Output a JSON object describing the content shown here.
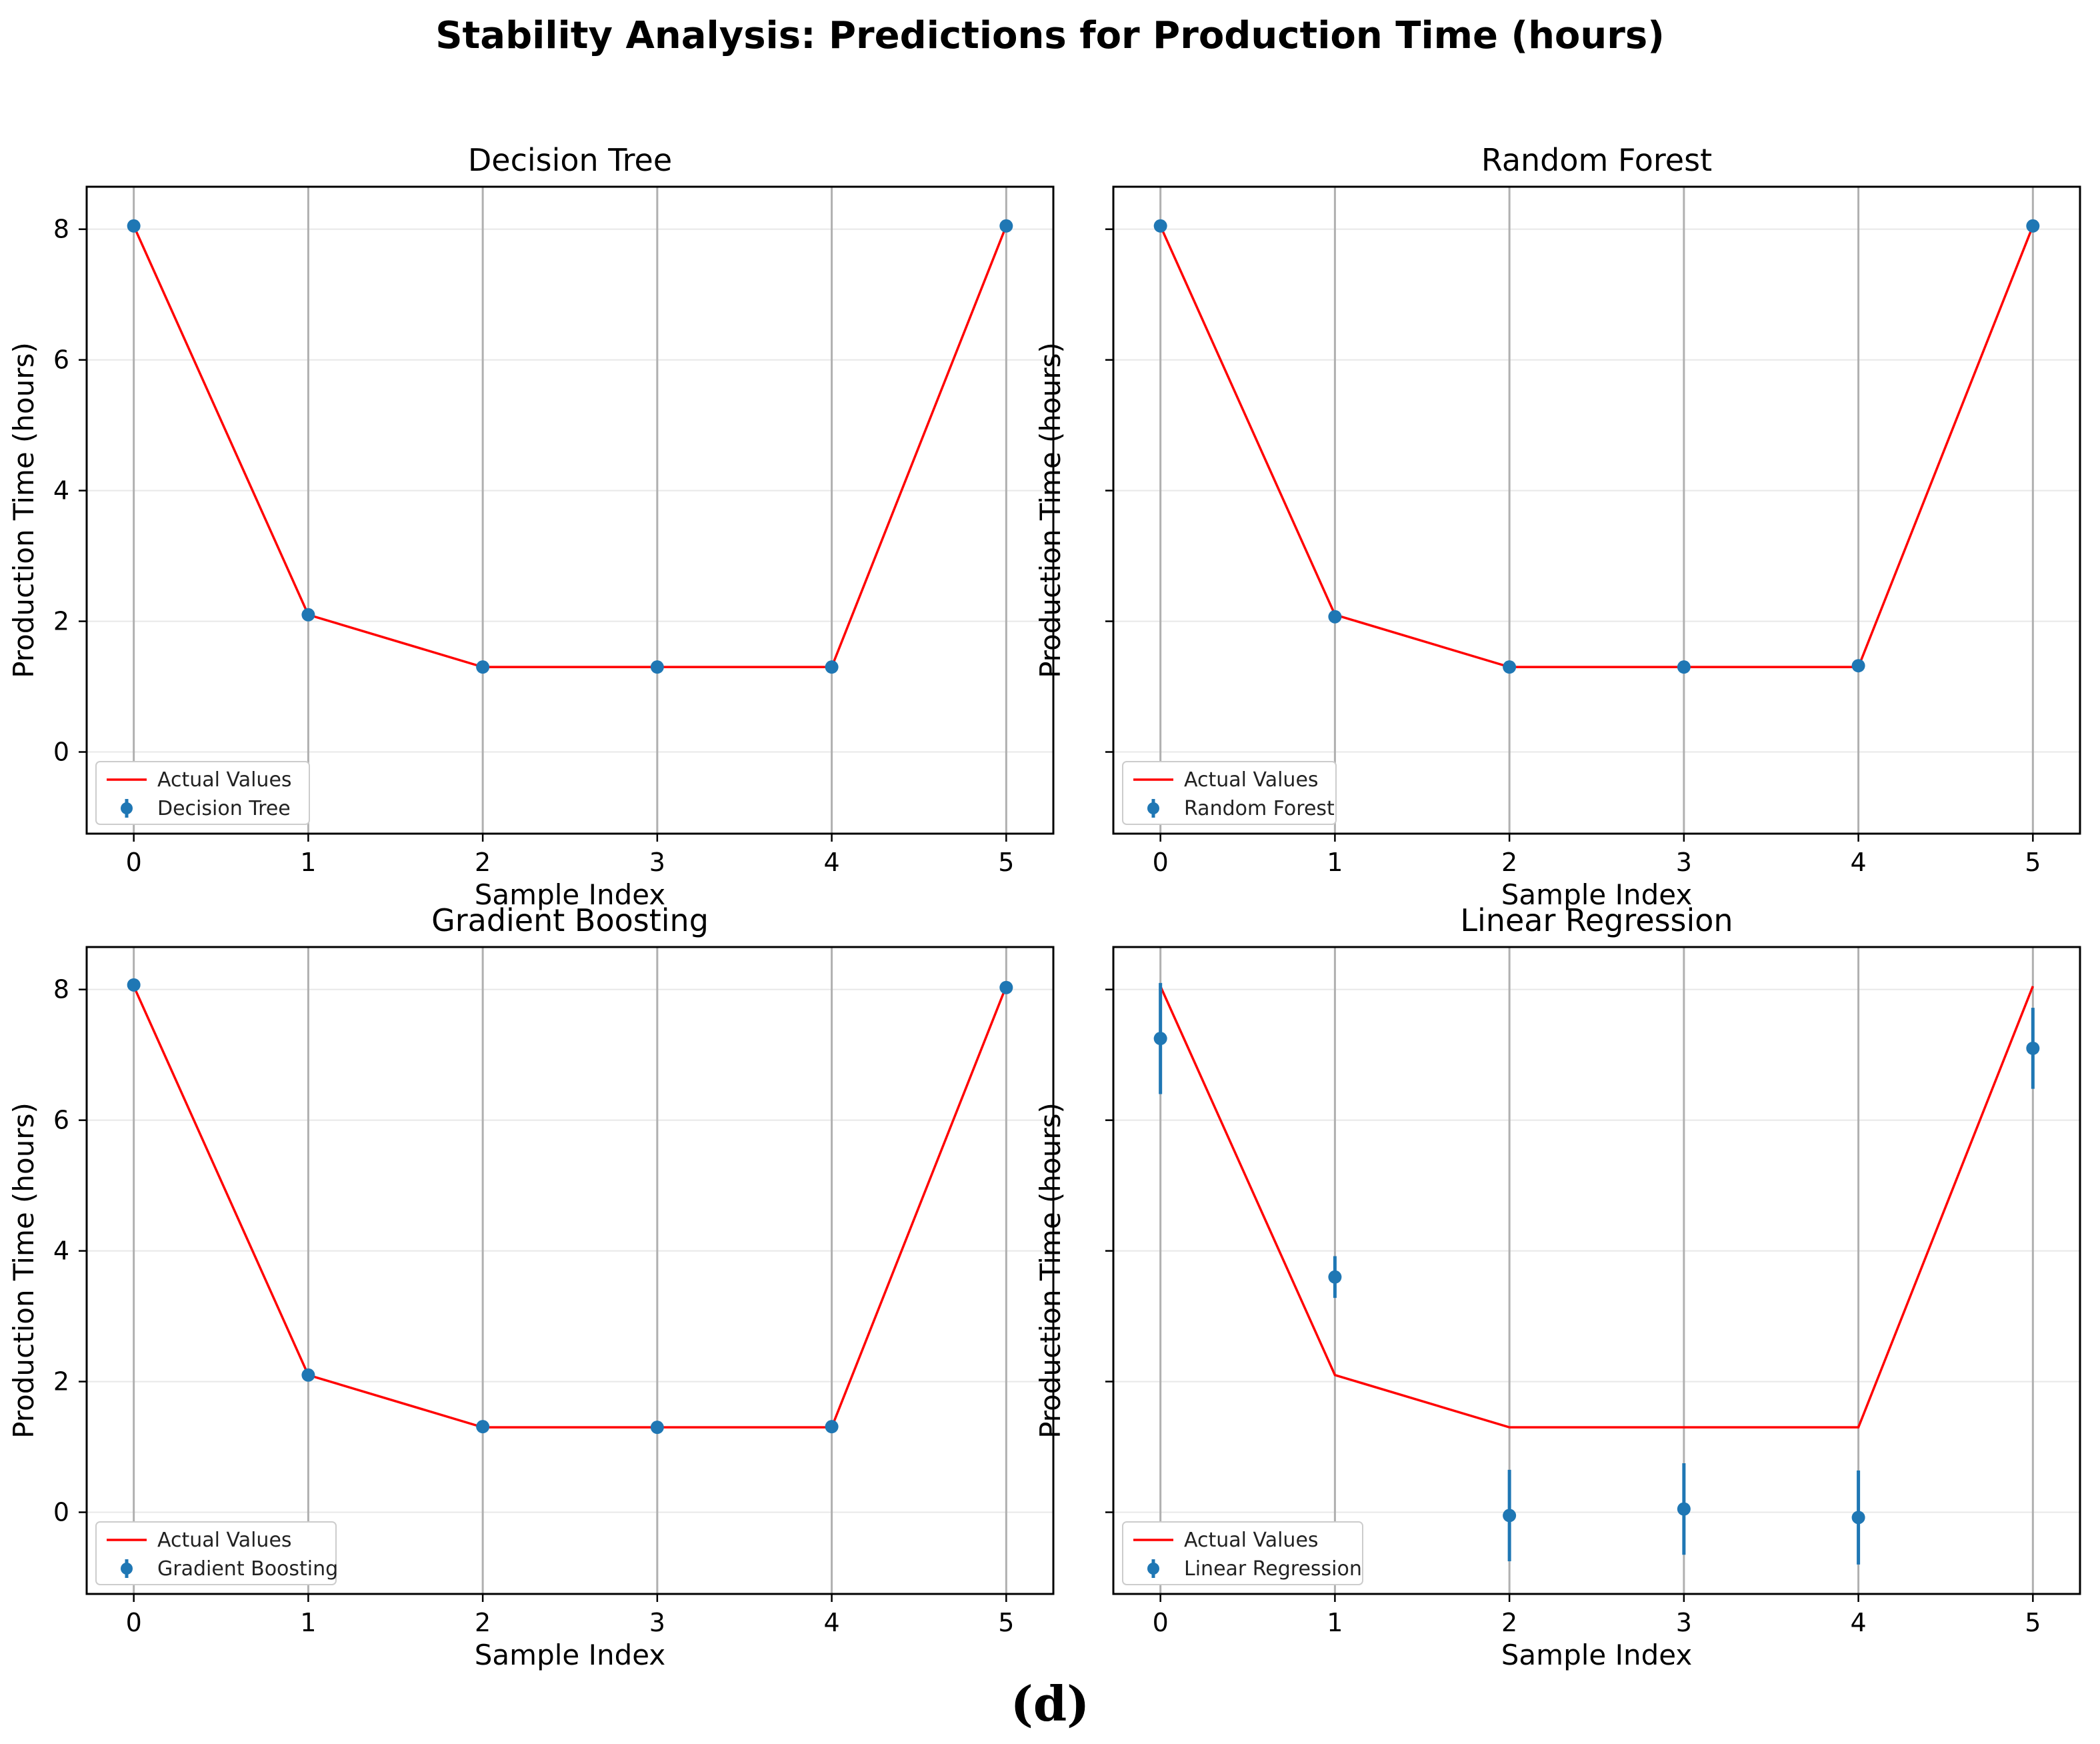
{
  "title": "Stability Analysis: Predictions for Production Time (hours)",
  "caption": "(d)",
  "chart_data": [
    {
      "type": "line",
      "title": "Decision Tree",
      "xlabel": "Sample Index",
      "ylabel": "Production Time (hours)",
      "x": [
        0,
        1,
        2,
        3,
        4,
        5
      ],
      "xlim": [
        -0.27,
        5.27
      ],
      "ylim": [
        -1.25,
        8.65
      ],
      "xticks": [
        "0",
        "1",
        "2",
        "3",
        "4",
        "5"
      ],
      "yticks": [
        "0",
        "2",
        "4",
        "6",
        "8"
      ],
      "show_ytick_labels": true,
      "grid": true,
      "legend_location": "lower left",
      "series": [
        {
          "name": "Actual Values",
          "kind": "line",
          "color": "#ff0000",
          "values": [
            8.05,
            2.1,
            1.3,
            1.3,
            1.3,
            8.05
          ]
        },
        {
          "name": "Decision Tree",
          "kind": "errorbar",
          "color": "#1f77b4",
          "values": [
            8.05,
            2.1,
            1.3,
            1.3,
            1.3,
            8.05
          ],
          "errors": [
            0,
            0,
            0,
            0,
            0,
            0
          ]
        }
      ]
    },
    {
      "type": "line",
      "title": "Random Forest",
      "xlabel": "Sample Index",
      "ylabel": "Production Time (hours)",
      "x": [
        0,
        1,
        2,
        3,
        4,
        5
      ],
      "xlim": [
        -0.27,
        5.27
      ],
      "ylim": [
        -1.25,
        8.65
      ],
      "xticks": [
        "0",
        "1",
        "2",
        "3",
        "4",
        "5"
      ],
      "yticks": [
        "0",
        "2",
        "4",
        "6",
        "8"
      ],
      "show_ytick_labels": false,
      "grid": true,
      "legend_location": "lower left",
      "series": [
        {
          "name": "Actual Values",
          "kind": "line",
          "color": "#ff0000",
          "values": [
            8.05,
            2.1,
            1.3,
            1.3,
            1.3,
            8.05
          ]
        },
        {
          "name": "Random Forest",
          "kind": "errorbar",
          "color": "#1f77b4",
          "values": [
            8.05,
            2.07,
            1.3,
            1.3,
            1.32,
            8.05
          ],
          "errors": [
            0.05,
            0.05,
            0.03,
            0.03,
            0.05,
            0.05
          ]
        }
      ]
    },
    {
      "type": "line",
      "title": "Gradient Boosting",
      "xlabel": "Sample Index",
      "ylabel": "Production Time (hours)",
      "x": [
        0,
        1,
        2,
        3,
        4,
        5
      ],
      "xlim": [
        -0.27,
        5.27
      ],
      "ylim": [
        -1.25,
        8.65
      ],
      "xticks": [
        "0",
        "1",
        "2",
        "3",
        "4",
        "5"
      ],
      "yticks": [
        "0",
        "2",
        "4",
        "6",
        "8"
      ],
      "show_ytick_labels": true,
      "grid": true,
      "legend_location": "lower left",
      "series": [
        {
          "name": "Actual Values",
          "kind": "line",
          "color": "#ff0000",
          "values": [
            8.05,
            2.1,
            1.3,
            1.3,
            1.3,
            8.05
          ]
        },
        {
          "name": "Gradient Boosting",
          "kind": "errorbar",
          "color": "#1f77b4",
          "values": [
            8.07,
            2.1,
            1.31,
            1.3,
            1.31,
            8.03
          ],
          "errors": [
            0.04,
            0.03,
            0.03,
            0.02,
            0.03,
            0.04
          ]
        }
      ]
    },
    {
      "type": "line",
      "title": "Linear Regression",
      "xlabel": "Sample Index",
      "ylabel": "Production Time (hours)",
      "x": [
        0,
        1,
        2,
        3,
        4,
        5
      ],
      "xlim": [
        -0.27,
        5.27
      ],
      "ylim": [
        -1.25,
        8.65
      ],
      "xticks": [
        "0",
        "1",
        "2",
        "3",
        "4",
        "5"
      ],
      "yticks": [
        "0",
        "2",
        "4",
        "6",
        "8"
      ],
      "show_ytick_labels": false,
      "grid": true,
      "legend_location": "lower left",
      "series": [
        {
          "name": "Actual Values",
          "kind": "line",
          "color": "#ff0000",
          "values": [
            8.05,
            2.1,
            1.3,
            1.3,
            1.3,
            8.05
          ]
        },
        {
          "name": "Linear Regression",
          "kind": "errorbar",
          "color": "#1f77b4",
          "values": [
            7.25,
            3.6,
            -0.05,
            0.05,
            -0.08,
            7.1
          ],
          "errors": [
            0.85,
            0.32,
            0.7,
            0.7,
            0.72,
            0.62
          ]
        }
      ]
    }
  ]
}
